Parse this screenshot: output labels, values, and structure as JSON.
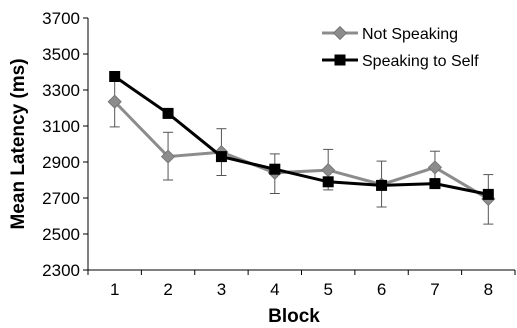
{
  "chart_data": {
    "type": "line",
    "xlabel": "Block",
    "ylabel": "Mean Latency (ms)",
    "categories": [
      "1",
      "2",
      "3",
      "4",
      "5",
      "6",
      "7",
      "8"
    ],
    "ylim": [
      2300,
      3700
    ],
    "yticks": [
      2300,
      2500,
      2700,
      2900,
      3100,
      3300,
      3500,
      3700
    ],
    "grid": false,
    "legend_position": "top-right",
    "series": [
      {
        "name": "Not Speaking",
        "marker": "diamond",
        "color": "#8c8c8c",
        "values": [
          3235,
          2930,
          2955,
          2840,
          2855,
          2775,
          2870,
          2695
        ],
        "error_low": [
          3095,
          2800,
          2825,
          2725,
          2745,
          2650,
          2780,
          2555
        ],
        "error_high": [
          3370,
          3065,
          3085,
          2945,
          2970,
          2905,
          2960,
          2830
        ]
      },
      {
        "name": "Speaking to Self",
        "marker": "square",
        "color": "#000000",
        "values": [
          3375,
          3170,
          2930,
          2860,
          2790,
          2770,
          2780,
          2720
        ],
        "error_low": [],
        "error_high": []
      }
    ]
  }
}
